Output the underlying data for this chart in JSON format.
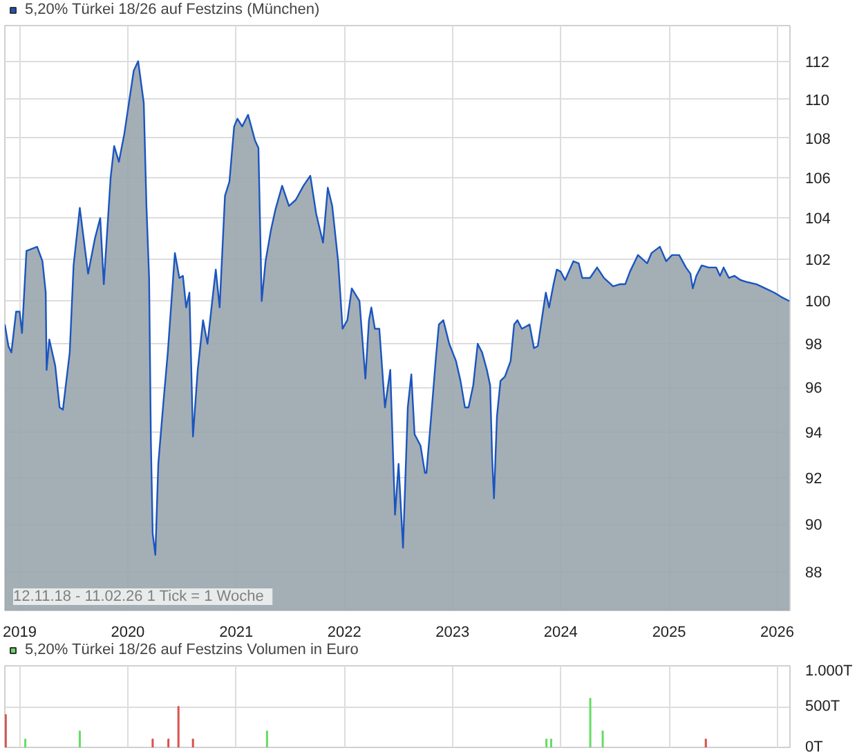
{
  "chart_data": [
    {
      "type": "area",
      "log": true,
      "grid": true,
      "legend": "top left",
      "line_style": "solid",
      "annotations": [
        "12.11.18 - 11.02.26   1 Tick = 1 Woche"
      ],
      "xlim": [
        "2018-11-12",
        "2026-02-13"
      ],
      "xticks": [
        {
          "value": "2019-01-01",
          "label": "2019"
        },
        {
          "value": "2020-01-01",
          "label": "2020"
        },
        {
          "value": "2021-01-01",
          "label": "2021"
        },
        {
          "value": "2022-01-01",
          "label": "2022"
        },
        {
          "value": "2023-01-01",
          "label": "2023"
        },
        {
          "value": "2024-01-01",
          "label": "2024"
        },
        {
          "value": "2025-01-01",
          "label": "2025"
        },
        {
          "value": "2026-01-01",
          "label": "2026"
        }
      ],
      "ylim": [
        86.4,
        113.9
      ],
      "yticks": [
        88,
        90,
        92,
        94,
        96,
        98,
        100,
        102,
        104,
        106,
        108,
        110,
        112
      ],
      "series": [
        {
          "name": "5,20% Türkei 18/26 auf Festzins (München)",
          "color": "#1a55c0",
          "x": [
            "2018-11-12",
            "2018-11-24",
            "2018-12-04",
            "2018-12-20",
            "2019-01-01",
            "2019-01-09",
            "2019-01-24",
            "2019-03-01",
            "2019-03-19",
            "2019-03-30",
            "2019-04-02",
            "2019-04-11",
            "2019-05-01",
            "2019-05-16",
            "2019-05-27",
            "2019-06-19",
            "2019-07-02",
            "2019-07-23",
            "2019-08-20",
            "2019-09-12",
            "2019-09-30",
            "2019-10-12",
            "2019-11-04",
            "2019-11-16",
            "2019-12-02",
            "2019-12-20",
            "2020-01-21",
            "2020-02-05",
            "2020-02-24",
            "2020-03-04",
            "2020-03-13",
            "2020-03-19",
            "2020-03-25",
            "2020-04-03",
            "2020-04-13",
            "2020-04-30",
            "2020-05-15",
            "2020-06-08",
            "2020-06-23",
            "2020-07-05",
            "2020-07-16",
            "2020-07-27",
            "2020-08-08",
            "2020-08-24",
            "2020-09-11",
            "2020-09-26",
            "2020-10-12",
            "2020-10-24",
            "2020-11-06",
            "2020-11-24",
            "2020-12-09",
            "2020-12-25",
            "2021-01-05",
            "2021-01-21",
            "2021-02-10",
            "2021-03-05",
            "2021-03-17",
            "2021-03-28",
            "2021-04-10",
            "2021-04-28",
            "2021-05-13",
            "2021-06-05",
            "2021-06-28",
            "2021-07-21",
            "2021-08-16",
            "2021-09-08",
            "2021-09-28",
            "2021-10-21",
            "2021-11-06",
            "2021-11-21",
            "2021-12-11",
            "2021-12-26",
            "2022-01-11",
            "2022-01-26",
            "2022-02-21",
            "2022-03-13",
            "2022-03-25",
            "2022-04-02",
            "2022-04-14",
            "2022-04-29",
            "2022-05-18",
            "2022-06-05",
            "2022-06-21",
            "2022-07-03",
            "2022-07-18",
            "2022-08-03",
            "2022-08-15",
            "2022-08-26",
            "2022-09-15",
            "2022-09-30",
            "2022-10-05",
            "2022-10-21",
            "2022-11-05",
            "2022-11-16",
            "2022-12-01",
            "2022-12-21",
            "2023-01-13",
            "2023-01-28",
            "2023-02-12",
            "2023-02-24",
            "2023-03-12",
            "2023-03-27",
            "2023-04-11",
            "2023-04-27",
            "2023-05-08",
            "2023-05-15",
            "2023-05-21",
            "2023-05-31",
            "2023-06-12",
            "2023-06-27",
            "2023-07-16",
            "2023-07-28",
            "2023-08-08",
            "2023-08-23",
            "2023-09-18",
            "2023-10-03",
            "2023-10-16",
            "2023-10-31",
            "2023-11-12",
            "2023-11-23",
            "2023-12-08",
            "2023-12-19",
            "2024-01-01",
            "2024-01-16",
            "2024-02-13",
            "2024-03-02",
            "2024-03-14",
            "2024-04-09",
            "2024-05-03",
            "2024-05-26",
            "2024-06-26",
            "2024-07-18",
            "2024-08-06",
            "2024-08-22",
            "2024-09-18",
            "2024-10-19",
            "2024-11-03",
            "2024-12-01",
            "2024-12-22",
            "2025-01-11",
            "2025-02-04",
            "2025-02-27",
            "2025-03-14",
            "2025-03-22",
            "2025-04-03",
            "2025-04-21",
            "2025-05-14",
            "2025-06-09",
            "2025-06-22",
            "2025-07-04",
            "2025-07-22",
            "2025-08-10",
            "2025-08-30",
            "2025-09-22",
            "2025-10-23",
            "2025-11-22",
            "2025-12-22",
            "2026-01-14",
            "2026-02-11"
          ],
          "values": [
            98.9,
            97.9,
            97.6,
            99.5,
            99.5,
            98.5,
            102.4,
            102.6,
            101.9,
            100.4,
            96.8,
            98.2,
            97.0,
            95.1,
            95.0,
            97.6,
            101.7,
            104.5,
            101.3,
            103.0,
            104.0,
            100.8,
            106.0,
            107.6,
            106.8,
            108.2,
            111.5,
            112.0,
            109.8,
            104.6,
            101.1,
            93.6,
            89.6,
            88.7,
            92.6,
            95.3,
            97.6,
            102.3,
            101.1,
            101.2,
            99.7,
            100.4,
            93.8,
            96.8,
            99.1,
            98.0,
            100.0,
            101.5,
            99.7,
            105.1,
            105.8,
            108.6,
            109.0,
            108.6,
            109.2,
            107.9,
            107.5,
            100.0,
            101.9,
            103.4,
            104.4,
            105.6,
            104.6,
            104.9,
            105.6,
            106.1,
            104.2,
            102.8,
            105.5,
            104.6,
            101.9,
            98.7,
            99.1,
            100.6,
            100.0,
            96.4,
            99.1,
            99.7,
            98.7,
            98.7,
            95.1,
            96.8,
            90.4,
            92.6,
            89.0,
            95.1,
            96.6,
            93.9,
            93.4,
            92.2,
            92.2,
            94.7,
            97.2,
            98.9,
            99.1,
            98.0,
            97.2,
            96.3,
            95.1,
            95.1,
            96.1,
            98.0,
            97.6,
            96.8,
            96.1,
            92.8,
            91.1,
            94.7,
            96.3,
            96.5,
            97.2,
            98.9,
            99.1,
            98.7,
            98.9,
            97.8,
            97.9,
            99.3,
            100.4,
            99.7,
            100.8,
            101.5,
            101.4,
            101.0,
            101.9,
            101.8,
            101.1,
            101.1,
            101.6,
            101.1,
            100.7,
            100.8,
            100.8,
            101.4,
            102.2,
            101.8,
            102.3,
            102.6,
            101.9,
            102.2,
            102.2,
            101.6,
            101.3,
            100.6,
            101.2,
            101.7,
            101.6,
            101.6,
            101.2,
            101.6,
            101.1,
            101.2,
            101.0,
            100.9,
            100.8,
            100.6,
            100.4,
            100.2,
            100.0
          ]
        }
      ]
    },
    {
      "type": "bar",
      "grid": true,
      "legend": "top left",
      "tick_labels": "y",
      "xlim": [
        "2018-11-12",
        "2026-02-13"
      ],
      "xticks": [
        {
          "value": "2019-01-01",
          "label": null
        },
        {
          "value": "2020-01-01",
          "label": null
        },
        {
          "value": "2021-01-01",
          "label": null
        },
        {
          "value": "2022-01-01",
          "label": null
        },
        {
          "value": "2023-01-01",
          "label": null
        },
        {
          "value": "2024-01-01",
          "label": null
        },
        {
          "value": "2025-01-01",
          "label": null
        },
        {
          "value": "2026-01-01",
          "label": null
        }
      ],
      "ylim": [
        0,
        1000
      ],
      "yticks": [
        {
          "value": 0,
          "label": "0T"
        },
        {
          "value": 500,
          "label": "500T"
        },
        {
          "value": 1000,
          "label": "1.000T"
        }
      ],
      "series": [
        {
          "name": "5,20% Türkei 18/26 auf Festzins Volumen in Euro",
          "color": "#66dd66",
          "x": [
            "2018-11-15",
            "2019-01-20",
            "2019-07-23",
            "2020-03-25",
            "2020-05-17",
            "2020-06-20",
            "2020-08-08",
            "2021-04-15",
            "2023-11-14",
            "2023-11-30",
            "2024-04-10",
            "2024-05-22",
            "2025-05-05"
          ],
          "values": [
            400,
            100,
            200,
            100,
            100,
            500,
            100,
            200,
            100,
            100,
            600,
            200,
            100
          ],
          "colors": [
            "#d9534f",
            "#66dd66",
            "#66dd66",
            "#d9534f",
            "#d9534f",
            "#d9534f",
            "#d9534f",
            "#66dd66",
            "#66dd66",
            "#66dd66",
            "#66dd66",
            "#66dd66",
            "#d9534f"
          ]
        }
      ]
    }
  ]
}
